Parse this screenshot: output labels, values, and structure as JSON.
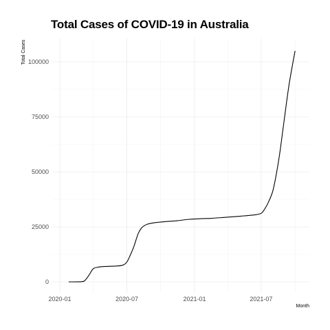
{
  "chart_data": {
    "type": "line",
    "title": "Total Cases of COVID-19 in Australia",
    "xlabel": "Month",
    "ylabel": "Total Cases",
    "x_ticks": [
      "2020-01",
      "2020-07",
      "2021-01",
      "2021-07"
    ],
    "y_ticks": [
      "0",
      "25000",
      "50000",
      "75000",
      "100000"
    ],
    "ylim": [
      -5000,
      110000
    ],
    "grid": true,
    "legend": "none",
    "line_color": "#000000",
    "series": [
      {
        "x": [
          "2020-01-25",
          "2020-03-01",
          "2020-03-10",
          "2020-03-20",
          "2020-04-01",
          "2020-04-15",
          "2020-05-01",
          "2020-06-01",
          "2020-06-20",
          "2020-07-01",
          "2020-07-10",
          "2020-07-20",
          "2020-08-01",
          "2020-08-10",
          "2020-08-20",
          "2020-09-01",
          "2020-09-20",
          "2020-10-15",
          "2020-11-15",
          "2020-12-15",
          "2021-01-15",
          "2021-02-15",
          "2021-03-15",
          "2021-04-15",
          "2021-05-15",
          "2021-06-15",
          "2021-07-01",
          "2021-07-10",
          "2021-07-20",
          "2021-08-01",
          "2021-08-10",
          "2021-08-20",
          "2021-09-01",
          "2021-09-15",
          "2021-10-01"
        ],
        "y": [
          0,
          100,
          800,
          3000,
          6000,
          6700,
          7000,
          7200,
          7600,
          9000,
          12000,
          16000,
          22000,
          24500,
          25800,
          26500,
          27000,
          27400,
          27800,
          28400,
          28700,
          28900,
          29200,
          29600,
          30000,
          30500,
          31200,
          33000,
          36000,
          41000,
          48000,
          58000,
          73000,
          90000,
          105000
        ]
      }
    ]
  }
}
